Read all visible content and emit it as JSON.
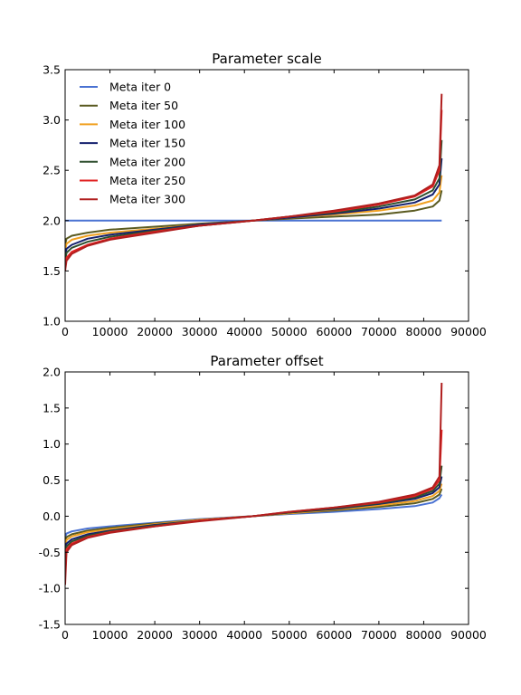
{
  "chart_data": [
    {
      "type": "line",
      "title": "Parameter scale",
      "xlabel": "",
      "ylabel": "",
      "xlim": [
        0,
        90000
      ],
      "ylim": [
        1.0,
        3.5
      ],
      "x_ticks": [
        "0",
        "10000",
        "20000",
        "30000",
        "40000",
        "50000",
        "60000",
        "70000",
        "80000",
        "90000"
      ],
      "y_ticks": [
        "1.0",
        "1.5",
        "2.0",
        "2.5",
        "3.0",
        "3.5"
      ],
      "grid": false,
      "legend": "top-left",
      "x": [
        0,
        300,
        1500,
        5000,
        10000,
        20000,
        30000,
        42000,
        50000,
        60000,
        70000,
        78000,
        82000,
        83500,
        84000
      ],
      "series": [
        {
          "name": "Meta iter 0",
          "color": "#4a72d2",
          "values": [
            2.0,
            2.0,
            2.0,
            2.0,
            2.0,
            2.0,
            2.0,
            2.0,
            2.0,
            2.0,
            2.0,
            2.0,
            2.0,
            2.0,
            2.0
          ]
        },
        {
          "name": "Meta iter 50",
          "color": "#5a5a20",
          "values": [
            1.76,
            1.82,
            1.85,
            1.88,
            1.91,
            1.94,
            1.97,
            2.0,
            2.02,
            2.04,
            2.06,
            2.1,
            2.14,
            2.2,
            2.3
          ]
        },
        {
          "name": "Meta iter 100",
          "color": "#f0a020",
          "values": [
            1.7,
            1.77,
            1.81,
            1.85,
            1.88,
            1.92,
            1.96,
            2.0,
            2.03,
            2.06,
            2.1,
            2.15,
            2.2,
            2.28,
            2.45
          ]
        },
        {
          "name": "Meta iter 150",
          "color": "#14206e",
          "values": [
            1.64,
            1.72,
            1.76,
            1.82,
            1.86,
            1.91,
            1.96,
            2.0,
            2.03,
            2.07,
            2.12,
            2.18,
            2.26,
            2.36,
            2.62
          ]
        },
        {
          "name": "Meta iter 200",
          "color": "#2e4f2e",
          "values": [
            1.6,
            1.68,
            1.73,
            1.79,
            1.84,
            1.9,
            1.95,
            2.0,
            2.04,
            2.08,
            2.14,
            2.21,
            2.3,
            2.42,
            2.8
          ]
        },
        {
          "name": "Meta iter 250",
          "color": "#e02020",
          "values": [
            1.55,
            1.63,
            1.69,
            1.76,
            1.82,
            1.89,
            1.95,
            2.0,
            2.04,
            2.09,
            2.16,
            2.24,
            2.34,
            2.5,
            3.1
          ]
        },
        {
          "name": "Meta iter 300",
          "color": "#b01e1e",
          "values": [
            1.5,
            1.6,
            1.67,
            1.75,
            1.81,
            1.88,
            1.95,
            2.0,
            2.04,
            2.1,
            2.17,
            2.25,
            2.36,
            2.55,
            3.26
          ]
        }
      ]
    },
    {
      "type": "line",
      "title": "Parameter offset",
      "xlabel": "",
      "ylabel": "",
      "xlim": [
        0,
        90000
      ],
      "ylim": [
        -1.5,
        2.0
      ],
      "x_ticks": [
        "0",
        "10000",
        "20000",
        "30000",
        "40000",
        "50000",
        "60000",
        "70000",
        "80000",
        "90000"
      ],
      "y_ticks": [
        "-1.5",
        "-1.0",
        "-0.5",
        "0.0",
        "0.5",
        "1.0",
        "1.5",
        "2.0"
      ],
      "grid": false,
      "legend": "none",
      "x": [
        0,
        300,
        1500,
        5000,
        10000,
        20000,
        30000,
        42000,
        50000,
        60000,
        70000,
        78000,
        82000,
        83500,
        84000
      ],
      "series": [
        {
          "name": "Meta iter 0",
          "color": "#4a72d2",
          "values": [
            -0.3,
            -0.24,
            -0.21,
            -0.17,
            -0.14,
            -0.09,
            -0.04,
            0.0,
            0.03,
            0.06,
            0.1,
            0.14,
            0.19,
            0.25,
            0.3
          ]
        },
        {
          "name": "Meta iter 50",
          "color": "#5a5a20",
          "values": [
            -0.38,
            -0.29,
            -0.25,
            -0.2,
            -0.16,
            -0.1,
            -0.05,
            0.0,
            0.04,
            0.08,
            0.13,
            0.18,
            0.24,
            0.3,
            0.38
          ]
        },
        {
          "name": "Meta iter 100",
          "color": "#f0a020",
          "values": [
            -0.45,
            -0.33,
            -0.28,
            -0.22,
            -0.18,
            -0.11,
            -0.05,
            0.0,
            0.04,
            0.09,
            0.15,
            0.21,
            0.28,
            0.35,
            0.45
          ]
        },
        {
          "name": "Meta iter 150",
          "color": "#14206e",
          "values": [
            -0.55,
            -0.38,
            -0.32,
            -0.25,
            -0.2,
            -0.12,
            -0.06,
            0.0,
            0.05,
            0.1,
            0.17,
            0.24,
            0.32,
            0.4,
            0.55
          ]
        },
        {
          "name": "Meta iter 200",
          "color": "#2e4f2e",
          "values": [
            -0.65,
            -0.42,
            -0.35,
            -0.27,
            -0.21,
            -0.13,
            -0.06,
            0.0,
            0.05,
            0.11,
            0.18,
            0.26,
            0.35,
            0.45,
            0.7
          ]
        },
        {
          "name": "Meta iter 250",
          "color": "#e02020",
          "values": [
            -0.8,
            -0.46,
            -0.38,
            -0.29,
            -0.22,
            -0.14,
            -0.06,
            0.0,
            0.06,
            0.12,
            0.19,
            0.28,
            0.38,
            0.5,
            1.2
          ]
        },
        {
          "name": "Meta iter 300",
          "color": "#b01e1e",
          "values": [
            -0.95,
            -0.5,
            -0.4,
            -0.3,
            -0.23,
            -0.14,
            -0.07,
            0.0,
            0.06,
            0.12,
            0.2,
            0.3,
            0.4,
            0.55,
            1.85
          ]
        }
      ]
    }
  ]
}
